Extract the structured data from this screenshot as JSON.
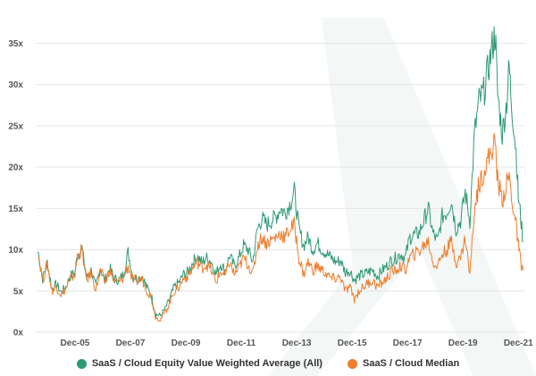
{
  "colors": {
    "weighted_average": "#2e9a72",
    "median": "#ee7d2d",
    "grid": "#e6e6e6",
    "watermark": "#f3f7f5"
  },
  "chart_data": {
    "type": "line",
    "title": "",
    "xlabel": "",
    "ylabel": "",
    "xlim": [
      "2004-07",
      "2022-03"
    ],
    "ylim": [
      0,
      37
    ],
    "grid": "horizontal",
    "legend_position": "bottom-center",
    "y_ticks": [
      {
        "value": 35,
        "label": "35x"
      },
      {
        "value": 30,
        "label": "30x"
      },
      {
        "value": 25,
        "label": "25x"
      },
      {
        "value": 20,
        "label": "20x"
      },
      {
        "value": 15,
        "label": "15x"
      },
      {
        "value": 10,
        "label": "10x"
      },
      {
        "value": 5,
        "label": "5x"
      },
      {
        "value": 0,
        "label": "0x"
      }
    ],
    "x_ticks": [
      {
        "value": "2005-12",
        "label": "Dec-05"
      },
      {
        "value": "2007-12",
        "label": "Dec-07"
      },
      {
        "value": "2009-12",
        "label": "Dec-09"
      },
      {
        "value": "2011-12",
        "label": "Dec-11"
      },
      {
        "value": "2013-12",
        "label": "Dec-13"
      },
      {
        "value": "2015-12",
        "label": "Dec-15"
      },
      {
        "value": "2017-12",
        "label": "Dec-17"
      },
      {
        "value": "2019-12",
        "label": "Dec-19"
      },
      {
        "value": "2021-12",
        "label": "Dec-21"
      }
    ],
    "series": [
      {
        "name": "SaaS / Cloud Equity Value Weighted Average (All)",
        "color_key": "weighted_average",
        "points": [
          [
            "2004-08",
            9.8
          ],
          [
            "2004-10",
            6.5
          ],
          [
            "2004-12",
            8.5
          ],
          [
            "2005-02",
            5.3
          ],
          [
            "2005-04",
            5.8
          ],
          [
            "2005-06",
            4.8
          ],
          [
            "2005-08",
            5.5
          ],
          [
            "2005-10",
            6.8
          ],
          [
            "2005-12",
            7.2
          ],
          [
            "2006-01",
            9.3
          ],
          [
            "2006-03",
            10.2
          ],
          [
            "2006-05",
            6.5
          ],
          [
            "2006-07",
            7.5
          ],
          [
            "2006-09",
            5.5
          ],
          [
            "2006-11",
            7.8
          ],
          [
            "2007-01",
            6.2
          ],
          [
            "2007-03",
            7.8
          ],
          [
            "2007-05",
            6.5
          ],
          [
            "2007-07",
            6.3
          ],
          [
            "2007-09",
            7.0
          ],
          [
            "2007-11",
            9.7
          ],
          [
            "2008-01",
            6.8
          ],
          [
            "2008-03",
            6.5
          ],
          [
            "2008-05",
            6.8
          ],
          [
            "2008-07",
            5.5
          ],
          [
            "2008-09",
            4.5
          ],
          [
            "2008-11",
            2.2
          ],
          [
            "2009-01",
            2.0
          ],
          [
            "2009-03",
            2.8
          ],
          [
            "2009-05",
            4.0
          ],
          [
            "2009-07",
            5.5
          ],
          [
            "2009-09",
            6.0
          ],
          [
            "2009-11",
            7.0
          ],
          [
            "2010-01",
            7.3
          ],
          [
            "2010-03",
            8.5
          ],
          [
            "2010-05",
            9.2
          ],
          [
            "2010-07",
            8.4
          ],
          [
            "2010-09",
            9.0
          ],
          [
            "2010-11",
            8.6
          ],
          [
            "2011-01",
            7.0
          ],
          [
            "2011-03",
            8.3
          ],
          [
            "2011-05",
            7.5
          ],
          [
            "2011-07",
            9.3
          ],
          [
            "2011-09",
            8.0
          ],
          [
            "2011-11",
            9.0
          ],
          [
            "2012-01",
            10.5
          ],
          [
            "2012-03",
            10.0
          ],
          [
            "2012-05",
            8.5
          ],
          [
            "2012-07",
            12.5
          ],
          [
            "2012-09",
            13.8
          ],
          [
            "2012-11",
            13.0
          ],
          [
            "2013-01",
            13.5
          ],
          [
            "2013-03",
            14.0
          ],
          [
            "2013-05",
            15.0
          ],
          [
            "2013-07",
            14.5
          ],
          [
            "2013-09",
            15.5
          ],
          [
            "2013-11",
            17.0
          ],
          [
            "2014-01",
            12.5
          ],
          [
            "2014-03",
            10.5
          ],
          [
            "2014-05",
            11.5
          ],
          [
            "2014-07",
            10.0
          ],
          [
            "2014-09",
            10.8
          ],
          [
            "2014-11",
            10.0
          ],
          [
            "2015-01",
            9.5
          ],
          [
            "2015-03",
            9.0
          ],
          [
            "2015-05",
            8.5
          ],
          [
            "2015-07",
            8.7
          ],
          [
            "2015-09",
            7.3
          ],
          [
            "2015-11",
            7.5
          ],
          [
            "2016-01",
            6.3
          ],
          [
            "2016-03",
            6.8
          ],
          [
            "2016-05",
            7.0
          ],
          [
            "2016-07",
            7.3
          ],
          [
            "2016-09",
            7.5
          ],
          [
            "2016-11",
            6.8
          ],
          [
            "2017-01",
            7.5
          ],
          [
            "2017-03",
            8.0
          ],
          [
            "2017-05",
            8.7
          ],
          [
            "2017-07",
            9.0
          ],
          [
            "2017-09",
            9.5
          ],
          [
            "2017-11",
            9.0
          ],
          [
            "2018-01",
            11.5
          ],
          [
            "2018-03",
            11.8
          ],
          [
            "2018-05",
            12.0
          ],
          [
            "2018-07",
            13.5
          ],
          [
            "2018-09",
            15.0
          ],
          [
            "2018-11",
            12.0
          ],
          [
            "2019-01",
            11.0
          ],
          [
            "2019-03",
            14.0
          ],
          [
            "2019-05",
            14.5
          ],
          [
            "2019-07",
            16.0
          ],
          [
            "2019-09",
            12.5
          ],
          [
            "2019-11",
            13.5
          ],
          [
            "2020-01",
            17.0
          ],
          [
            "2020-03",
            13.5
          ],
          [
            "2020-05",
            24.0
          ],
          [
            "2020-07",
            28.0
          ],
          [
            "2020-09",
            29.0
          ],
          [
            "2020-11",
            32.0
          ],
          [
            "2021-01",
            35.0
          ],
          [
            "2021-02",
            36.2
          ],
          [
            "2021-03",
            29.0
          ],
          [
            "2021-05",
            24.0
          ],
          [
            "2021-07",
            28.0
          ],
          [
            "2021-08",
            32.3
          ],
          [
            "2021-09",
            28.0
          ],
          [
            "2021-11",
            22.0
          ],
          [
            "2021-12",
            16.5
          ],
          [
            "2022-01",
            14.0
          ],
          [
            "2022-02",
            11.0
          ]
        ]
      },
      {
        "name": "SaaS / Cloud Median",
        "color_key": "median",
        "points": [
          [
            "2004-08",
            9.8
          ],
          [
            "2004-10",
            6.3
          ],
          [
            "2004-12",
            8.2
          ],
          [
            "2005-02",
            5.0
          ],
          [
            "2005-04",
            5.5
          ],
          [
            "2005-06",
            4.6
          ],
          [
            "2005-08",
            5.2
          ],
          [
            "2005-10",
            6.5
          ],
          [
            "2005-12",
            7.0
          ],
          [
            "2006-01",
            9.2
          ],
          [
            "2006-03",
            10.0
          ],
          [
            "2006-05",
            6.2
          ],
          [
            "2006-07",
            7.2
          ],
          [
            "2006-09",
            5.2
          ],
          [
            "2006-11",
            7.5
          ],
          [
            "2007-01",
            6.0
          ],
          [
            "2007-03",
            7.5
          ],
          [
            "2007-05",
            6.2
          ],
          [
            "2007-07",
            6.0
          ],
          [
            "2007-09",
            6.6
          ],
          [
            "2007-11",
            8.0
          ],
          [
            "2008-01",
            6.3
          ],
          [
            "2008-03",
            6.2
          ],
          [
            "2008-05",
            6.5
          ],
          [
            "2008-07",
            5.2
          ],
          [
            "2008-09",
            4.2
          ],
          [
            "2008-11",
            1.8
          ],
          [
            "2009-01",
            1.6
          ],
          [
            "2009-03",
            2.4
          ],
          [
            "2009-05",
            3.6
          ],
          [
            "2009-07",
            5.0
          ],
          [
            "2009-09",
            5.5
          ],
          [
            "2009-11",
            6.5
          ],
          [
            "2010-01",
            6.8
          ],
          [
            "2010-03",
            7.8
          ],
          [
            "2010-05",
            8.5
          ],
          [
            "2010-07",
            7.8
          ],
          [
            "2010-09",
            8.2
          ],
          [
            "2010-11",
            7.5
          ],
          [
            "2011-01",
            6.0
          ],
          [
            "2011-03",
            7.3
          ],
          [
            "2011-05",
            6.8
          ],
          [
            "2011-07",
            8.5
          ],
          [
            "2011-09",
            7.0
          ],
          [
            "2011-11",
            7.8
          ],
          [
            "2012-01",
            9.0
          ],
          [
            "2012-03",
            8.2
          ],
          [
            "2012-05",
            7.0
          ],
          [
            "2012-07",
            10.5
          ],
          [
            "2012-09",
            11.5
          ],
          [
            "2012-11",
            10.8
          ],
          [
            "2013-01",
            11.2
          ],
          [
            "2013-03",
            11.5
          ],
          [
            "2013-05",
            12.0
          ],
          [
            "2013-07",
            11.5
          ],
          [
            "2013-09",
            12.5
          ],
          [
            "2013-11",
            13.0
          ],
          [
            "2014-01",
            9.0
          ],
          [
            "2014-03",
            7.0
          ],
          [
            "2014-05",
            8.5
          ],
          [
            "2014-07",
            7.5
          ],
          [
            "2014-09",
            8.0
          ],
          [
            "2014-11",
            7.5
          ],
          [
            "2015-01",
            7.0
          ],
          [
            "2015-03",
            6.5
          ],
          [
            "2015-05",
            6.5
          ],
          [
            "2015-07",
            6.7
          ],
          [
            "2015-09",
            5.0
          ],
          [
            "2015-11",
            5.5
          ],
          [
            "2016-01",
            4.0
          ],
          [
            "2016-03",
            5.0
          ],
          [
            "2016-05",
            5.5
          ],
          [
            "2016-07",
            6.0
          ],
          [
            "2016-09",
            6.2
          ],
          [
            "2016-11",
            5.5
          ],
          [
            "2017-01",
            6.0
          ],
          [
            "2017-03",
            6.5
          ],
          [
            "2017-05",
            7.3
          ],
          [
            "2017-07",
            7.5
          ],
          [
            "2017-09",
            8.0
          ],
          [
            "2017-11",
            7.5
          ],
          [
            "2018-01",
            9.0
          ],
          [
            "2018-03",
            9.5
          ],
          [
            "2018-05",
            9.8
          ],
          [
            "2018-07",
            10.5
          ],
          [
            "2018-09",
            11.0
          ],
          [
            "2018-11",
            8.5
          ],
          [
            "2019-01",
            8.0
          ],
          [
            "2019-03",
            9.5
          ],
          [
            "2019-05",
            10.0
          ],
          [
            "2019-07",
            11.0
          ],
          [
            "2019-09",
            8.5
          ],
          [
            "2019-11",
            9.0
          ],
          [
            "2020-01",
            11.5
          ],
          [
            "2020-03",
            7.0
          ],
          [
            "2020-05",
            15.0
          ],
          [
            "2020-07",
            18.0
          ],
          [
            "2020-09",
            19.5
          ],
          [
            "2020-11",
            21.0
          ],
          [
            "2021-01",
            22.5
          ],
          [
            "2021-02",
            23.0
          ],
          [
            "2021-03",
            18.5
          ],
          [
            "2021-05",
            16.0
          ],
          [
            "2021-07",
            18.0
          ],
          [
            "2021-08",
            19.0
          ],
          [
            "2021-09",
            16.5
          ],
          [
            "2021-11",
            13.0
          ],
          [
            "2021-12",
            10.5
          ],
          [
            "2022-01",
            8.5
          ],
          [
            "2022-02",
            7.5
          ]
        ]
      }
    ]
  }
}
